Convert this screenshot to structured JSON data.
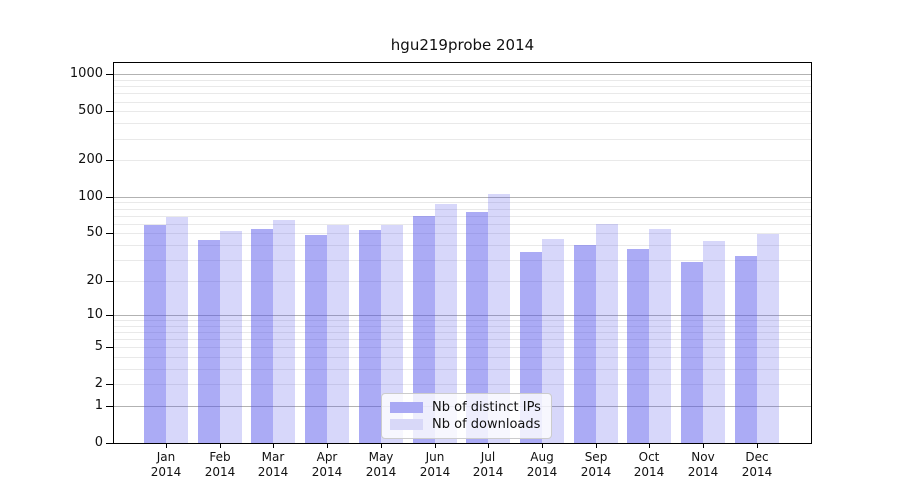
{
  "title": "hgu219probe 2014",
  "chart_data": {
    "type": "bar",
    "title": "hgu219probe 2014",
    "categories": [
      "Jan",
      "Feb",
      "Mar",
      "Apr",
      "May",
      "Jun",
      "Jul",
      "Aug",
      "Sep",
      "Oct",
      "Nov",
      "Dec"
    ],
    "year_label": "2014",
    "series": [
      {
        "name": "Nb of distinct IPs",
        "values": [
          58,
          44,
          54,
          48,
          53,
          69,
          75,
          35,
          40,
          37,
          29,
          32
        ],
        "fill": "rgba(80,80,235,0.48)",
        "legend_color": "#a9a9f4"
      },
      {
        "name": "Nb of downloads",
        "values": [
          68,
          52,
          64,
          58,
          59,
          87,
          105,
          45,
          60,
          54,
          43,
          49
        ],
        "fill": "rgba(80,80,235,0.23)",
        "legend_color": "#d8d8f8"
      }
    ],
    "xlabel": "",
    "ylabel": "",
    "y_ticks": [
      0,
      1,
      2,
      5,
      10,
      20,
      50,
      100,
      200,
      500,
      1000
    ],
    "y_scale": "log10(1+x)",
    "ylim": [
      0,
      1240
    ],
    "grid": "horizontal, log majors and minors",
    "legend_position": "lower center"
  },
  "colors": {
    "major_grid": "#b2b2b2",
    "minor_grid": "#e9e9e9",
    "axis": "#000000",
    "background": "#ffffff"
  }
}
